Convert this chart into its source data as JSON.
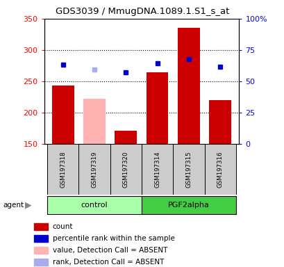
{
  "title": "GDS3039 / MmugDNA.1089.1.S1_s_at",
  "samples": [
    "GSM197318",
    "GSM197319",
    "GSM197320",
    "GSM197314",
    "GSM197315",
    "GSM197316"
  ],
  "bar_values": [
    244,
    222,
    172,
    265,
    336,
    220
  ],
  "bar_colors": [
    "#cc0000",
    "#ffb3b3",
    "#cc0000",
    "#cc0000",
    "#cc0000",
    "#cc0000"
  ],
  "dot_values": [
    277,
    269,
    265,
    279,
    286,
    273
  ],
  "dot_colors": [
    "#0000cc",
    "#aaaaee",
    "#0000cc",
    "#0000cc",
    "#0000cc",
    "#0000cc"
  ],
  "ylim_left": [
    150,
    350
  ],
  "ylim_right": [
    0,
    100
  ],
  "yticks_left": [
    150,
    200,
    250,
    300,
    350
  ],
  "ytick_labels_left": [
    "150",
    "200",
    "250",
    "300",
    "350"
  ],
  "yticks_right": [
    0,
    25,
    50,
    75,
    100
  ],
  "ytick_labels_right": [
    "0",
    "25",
    "50",
    "75",
    "100%"
  ],
  "bar_width": 0.7,
  "group_info": [
    {
      "label": "control",
      "color": "#aaffaa",
      "start": 0,
      "end": 3
    },
    {
      "label": "PGF2alpha",
      "color": "#44cc44",
      "start": 3,
      "end": 6
    }
  ],
  "grid_yticks": [
    200,
    250,
    300
  ],
  "bg_color": "#ffffff",
  "sample_box_color": "#cccccc",
  "legend_colors": [
    "#cc0000",
    "#0000cc",
    "#ffb3b3",
    "#aaaaee"
  ],
  "legend_labels": [
    "count",
    "percentile rank within the sample",
    "value, Detection Call = ABSENT",
    "rank, Detection Call = ABSENT"
  ]
}
